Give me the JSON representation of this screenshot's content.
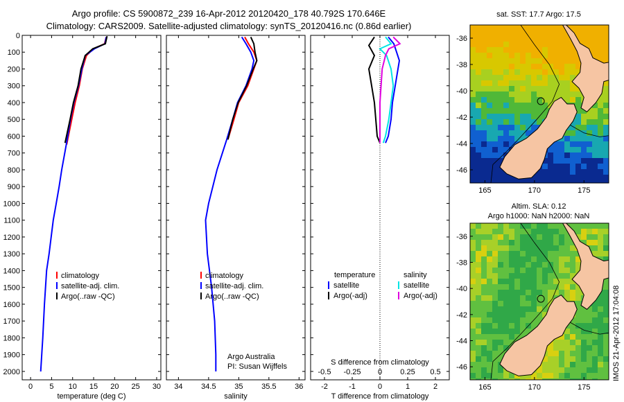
{
  "header": {
    "title_line1": "Argo profile: CS 5900872_239 16-Apr-2012 20120420_178 40.792S 170.646E",
    "title_line2": "Climatology: CARS2009. Satellite-adjusted climatology: synTS_20120416.nc (0.86d earlier)"
  },
  "credits": {
    "line1": "Argo Australia",
    "line2": "PI: Susan Wijffels"
  },
  "timestamp": "IMOS 21-Apr-2012 17:04:08",
  "colors": {
    "climatology": "#ff0000",
    "satellite": "#0000ff",
    "argo": "#000000",
    "salinity_satellite": "#00e5e5",
    "salinity_argo": "#e000e0",
    "land": "#f6c5a3",
    "sst_warm": "#e6a800",
    "sst_cold": "#0a2a90"
  },
  "chart_data": [
    {
      "type": "line",
      "id": "temperature",
      "xlabel": "temperature (deg C)",
      "xlim": [
        -2,
        31
      ],
      "xticks": [
        0,
        5,
        10,
        15,
        20,
        25,
        30
      ],
      "ylim": [
        2050,
        0
      ],
      "yticks": [
        0,
        100,
        200,
        300,
        400,
        500,
        600,
        700,
        800,
        900,
        1000,
        1100,
        1200,
        1300,
        1400,
        1500,
        1600,
        1700,
        1800,
        1900,
        2000
      ],
      "legend": [
        "climatology",
        "satellite-adj. clim.",
        "Argo(..raw -QC)"
      ],
      "series": [
        {
          "name": "climatology",
          "depth": [
            10,
            50,
            80,
            120,
            200,
            300,
            400,
            500,
            650
          ],
          "values": [
            18.0,
            17.6,
            15.0,
            13.3,
            12.3,
            11.6,
            10.6,
            9.8,
            8.6
          ]
        },
        {
          "name": "satellite-adj. clim.",
          "depth": [
            10,
            50,
            80,
            120,
            200,
            300,
            400,
            500,
            650,
            800,
            900,
            1000,
            1100,
            1200,
            1300,
            1400,
            1600,
            1800,
            2000
          ],
          "values": [
            18.0,
            17.7,
            15.2,
            13.0,
            12.2,
            11.4,
            10.3,
            9.5,
            8.5,
            7.4,
            6.8,
            6.1,
            5.4,
            4.9,
            4.4,
            3.8,
            3.3,
            2.9,
            2.4
          ]
        },
        {
          "name": "Argo(..raw -QC)",
          "depth": [
            5,
            50,
            80,
            120,
            200,
            300,
            400,
            500,
            640
          ],
          "values": [
            18.2,
            17.8,
            14.8,
            13.0,
            12.0,
            11.3,
            10.2,
            9.4,
            8.2
          ]
        }
      ]
    },
    {
      "type": "line",
      "id": "salinity",
      "xlabel": "salinity",
      "xlim": [
        33.8,
        36.1
      ],
      "xticks": [
        34,
        34.5,
        35,
        35.5,
        36
      ],
      "ylim": [
        2050,
        0
      ],
      "legend": [
        "climatology",
        "satellite-adj. clim.",
        "Argo(..raw -QC)"
      ],
      "series": [
        {
          "name": "climatology",
          "depth": [
            10,
            50,
            100,
            150,
            200,
            300,
            400,
            500,
            620
          ],
          "values": [
            35.1,
            35.16,
            35.25,
            35.3,
            35.25,
            35.15,
            35.0,
            34.92,
            34.82
          ]
        },
        {
          "name": "satellite-adj. clim.",
          "depth": [
            10,
            50,
            100,
            150,
            200,
            300,
            400,
            500,
            620,
            800,
            1000,
            1100,
            1300,
            1500,
            1700,
            1900,
            2000
          ],
          "values": [
            35.05,
            35.12,
            35.2,
            35.25,
            35.22,
            35.12,
            34.98,
            34.9,
            34.8,
            34.64,
            34.5,
            34.45,
            34.48,
            34.55,
            34.6,
            34.62,
            34.62
          ]
        },
        {
          "name": "Argo(..raw -QC)",
          "depth": [
            10,
            50,
            100,
            150,
            200,
            300,
            400,
            500,
            620
          ],
          "values": [
            35.2,
            35.25,
            35.27,
            35.3,
            35.24,
            35.13,
            34.99,
            34.9,
            34.82
          ]
        }
      ]
    },
    {
      "type": "line",
      "id": "difference",
      "xlabel": "T difference from climatology",
      "xlabel_top": "S difference from climatology",
      "xlim": [
        -2.5,
        2.5
      ],
      "xticks": [
        -2,
        -1,
        0,
        1,
        2
      ],
      "xticks_top": [
        -0.5,
        -0.25,
        0,
        0.25,
        0.5
      ],
      "ylim": [
        2050,
        0
      ],
      "legend_temperature_title": "temperature",
      "legend_salinity_title": "salinity",
      "legend": [
        "satellite",
        "Argo(-adj)",
        "satellite",
        "Argo(-adj)"
      ],
      "series": [
        {
          "name": "temperature satellite",
          "depth": [
            10,
            50,
            100,
            150,
            200,
            300,
            400,
            500,
            600,
            640
          ],
          "values": [
            0.3,
            0.5,
            0.6,
            0.7,
            0.65,
            0.55,
            0.45,
            0.4,
            0.3,
            0.2
          ]
        },
        {
          "name": "temperature Argo(-adj)",
          "depth": [
            10,
            60,
            90,
            120,
            200,
            300,
            400,
            500,
            600,
            640
          ],
          "values": [
            -0.2,
            -0.4,
            -0.3,
            -0.2,
            -0.4,
            -0.3,
            -0.2,
            -0.15,
            -0.1,
            0.0
          ]
        },
        {
          "name": "salinity satellite",
          "depth": [
            10,
            50,
            80,
            120,
            200,
            300,
            400,
            500,
            600,
            640
          ],
          "values": [
            0.05,
            0.1,
            0.0,
            0.06,
            0.1,
            0.12,
            0.1,
            0.08,
            0.05,
            0.03
          ]
        },
        {
          "name": "salinity Argo(-adj)",
          "depth": [
            10,
            50,
            80,
            120,
            200,
            300,
            400,
            500,
            600,
            640
          ],
          "values": [
            0.12,
            0.18,
            0.08,
            0.05,
            0.02,
            0.01,
            0.0,
            0.0,
            0.0,
            0.0
          ]
        }
      ]
    }
  ],
  "maps": [
    {
      "id": "sst-map",
      "title": "sat. SST: 17.7  Argo: 17.5",
      "xticks": [
        165,
        170,
        175
      ],
      "yticks": [
        -36,
        -38,
        -40,
        -42,
        -44,
        -46
      ],
      "xlim": [
        163.5,
        177.5
      ],
      "ylim": [
        -47,
        -35
      ],
      "marker_lon": 170.646,
      "marker_lat": -40.792
    },
    {
      "id": "sla-map",
      "title_line1": "Altim. SLA: 0.12",
      "title_line2": "Argo h1000: NaN  h2000: NaN",
      "xticks": [
        165,
        170,
        175
      ],
      "yticks": [
        -36,
        -38,
        -40,
        -42,
        -44,
        -46
      ],
      "xlim": [
        163.5,
        177.5
      ],
      "ylim": [
        -47,
        -35
      ],
      "marker_lon": 170.646,
      "marker_lat": -40.792
    }
  ]
}
